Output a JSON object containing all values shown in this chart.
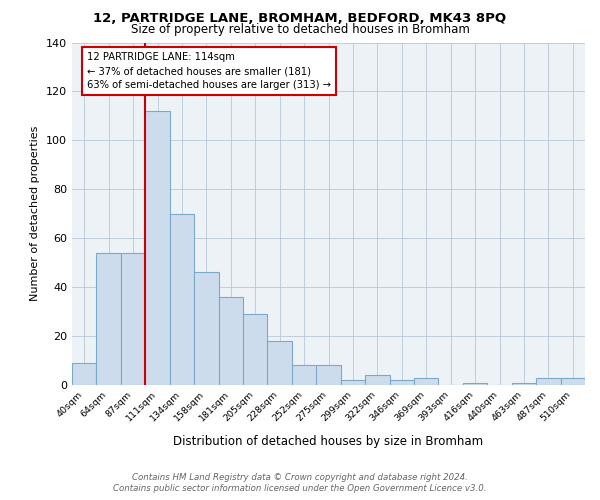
{
  "title_line1": "12, PARTRIDGE LANE, BROMHAM, BEDFORD, MK43 8PQ",
  "title_line2": "Size of property relative to detached houses in Bromham",
  "xlabel": "Distribution of detached houses by size in Bromham",
  "ylabel": "Number of detached properties",
  "bin_labels": [
    "40sqm",
    "64sqm",
    "87sqm",
    "111sqm",
    "134sqm",
    "158sqm",
    "181sqm",
    "205sqm",
    "228sqm",
    "252sqm",
    "275sqm",
    "299sqm",
    "322sqm",
    "346sqm",
    "369sqm",
    "393sqm",
    "416sqm",
    "440sqm",
    "463sqm",
    "487sqm",
    "510sqm"
  ],
  "bin_values": [
    9,
    54,
    54,
    112,
    70,
    46,
    36,
    29,
    18,
    8,
    8,
    2,
    4,
    2,
    3,
    0,
    1,
    0,
    1,
    3,
    3
  ],
  "bar_color": "#ccdcec",
  "bar_edge_color": "#7aaac8",
  "vline_color": "#cc0000",
  "vline_bin_index": 3,
  "annotation_text": "12 PARTRIDGE LANE: 114sqm\n← 37% of detached houses are smaller (181)\n63% of semi-detached houses are larger (313) →",
  "annotation_box_color": "#ffffff",
  "annotation_box_edge": "#cc0000",
  "ylim": [
    0,
    140
  ],
  "yticks": [
    0,
    20,
    40,
    60,
    80,
    100,
    120,
    140
  ],
  "footer_line1": "Contains HM Land Registry data © Crown copyright and database right 2024.",
  "footer_line2": "Contains public sector information licensed under the Open Government Licence v3.0.",
  "plot_bg_color": "#edf2f7"
}
